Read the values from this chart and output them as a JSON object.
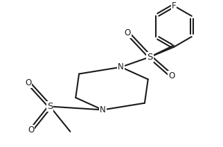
{
  "bg_color": "#ffffff",
  "line_color": "#1a1a1a",
  "line_width": 1.5,
  "font_size": 8.5,
  "figsize": [
    3.22,
    2.12
  ],
  "dpi": 100,
  "xlim": [
    0,
    10
  ],
  "ylim": [
    0,
    6.6
  ]
}
